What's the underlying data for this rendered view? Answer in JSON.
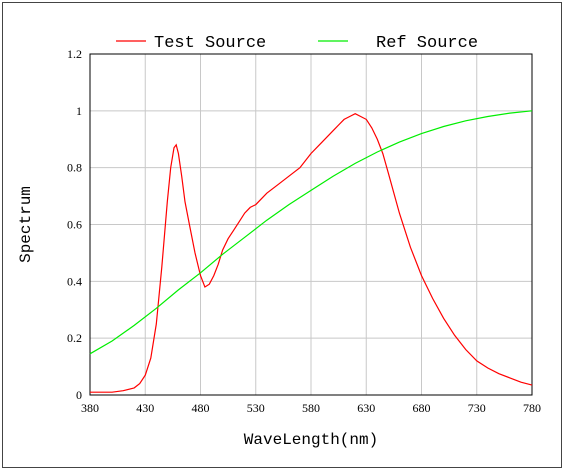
{
  "chart_data": {
    "type": "line",
    "xlabel": "WaveLength(nm)",
    "ylabel": "Spectrum",
    "xlim": [
      380,
      780
    ],
    "ylim": [
      0,
      1.2
    ],
    "x_ticks": [
      "380",
      "430",
      "480",
      "530",
      "580",
      "630",
      "680",
      "730",
      "780"
    ],
    "y_ticks": [
      "0",
      "0.2",
      "0.4",
      "0.6",
      "0.8",
      "1",
      "1.2"
    ],
    "grid": true,
    "legend_position": "top",
    "series": [
      {
        "name": "Test Source",
        "color": "#ff0000",
        "x": [
          380,
          390,
          400,
          410,
          420,
          425,
          430,
          435,
          440,
          445,
          450,
          453,
          456,
          458,
          460,
          463,
          466,
          470,
          475,
          480,
          484,
          488,
          492,
          496,
          500,
          505,
          510,
          515,
          520,
          525,
          530,
          540,
          550,
          560,
          570,
          580,
          590,
          600,
          605,
          610,
          615,
          620,
          625,
          630,
          635,
          640,
          645,
          650,
          660,
          670,
          680,
          690,
          700,
          710,
          720,
          730,
          740,
          750,
          760,
          770,
          780
        ],
        "y": [
          0.01,
          0.01,
          0.01,
          0.015,
          0.025,
          0.04,
          0.07,
          0.13,
          0.25,
          0.45,
          0.68,
          0.8,
          0.87,
          0.88,
          0.85,
          0.77,
          0.68,
          0.6,
          0.5,
          0.42,
          0.38,
          0.39,
          0.42,
          0.46,
          0.51,
          0.55,
          0.58,
          0.61,
          0.64,
          0.66,
          0.67,
          0.71,
          0.74,
          0.77,
          0.8,
          0.85,
          0.89,
          0.93,
          0.95,
          0.97,
          0.98,
          0.99,
          0.98,
          0.97,
          0.94,
          0.9,
          0.85,
          0.78,
          0.64,
          0.52,
          0.42,
          0.34,
          0.27,
          0.21,
          0.16,
          0.12,
          0.095,
          0.075,
          0.06,
          0.045,
          0.035
        ]
      },
      {
        "name": "Ref Source",
        "color": "#00ee00",
        "x": [
          380,
          400,
          420,
          440,
          460,
          480,
          500,
          520,
          540,
          560,
          580,
          600,
          620,
          640,
          660,
          680,
          700,
          720,
          740,
          760,
          780
        ],
        "y": [
          0.145,
          0.19,
          0.245,
          0.305,
          0.37,
          0.43,
          0.495,
          0.555,
          0.615,
          0.67,
          0.72,
          0.77,
          0.815,
          0.855,
          0.89,
          0.92,
          0.945,
          0.965,
          0.98,
          0.992,
          1.0
        ]
      }
    ]
  }
}
